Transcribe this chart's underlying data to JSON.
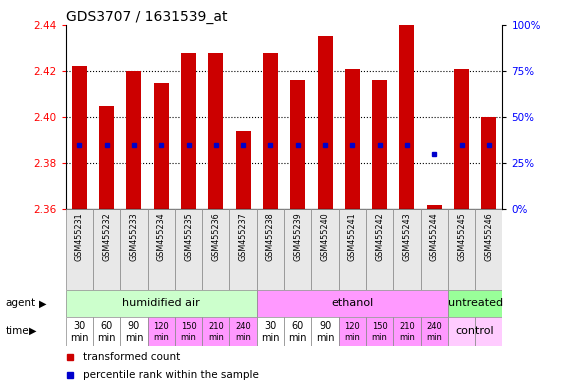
{
  "title": "GDS3707 / 1631539_at",
  "samples": [
    "GSM455231",
    "GSM455232",
    "GSM455233",
    "GSM455234",
    "GSM455235",
    "GSM455236",
    "GSM455237",
    "GSM455238",
    "GSM455239",
    "GSM455240",
    "GSM455241",
    "GSM455242",
    "GSM455243",
    "GSM455244",
    "GSM455245",
    "GSM455246"
  ],
  "bar_tops": [
    2.422,
    2.405,
    2.42,
    2.415,
    2.428,
    2.428,
    2.394,
    2.428,
    2.416,
    2.435,
    2.421,
    2.416,
    2.44,
    2.362,
    2.421,
    2.4
  ],
  "blue_dots": [
    2.388,
    2.388,
    2.388,
    2.388,
    2.388,
    2.388,
    2.388,
    2.388,
    2.388,
    2.388,
    2.388,
    2.388,
    2.388,
    2.384,
    2.388,
    2.388
  ],
  "bar_bottom": 2.36,
  "ylim": [
    2.36,
    2.44
  ],
  "yticks": [
    2.36,
    2.38,
    2.4,
    2.42,
    2.44
  ],
  "bar_color": "#cc0000",
  "blue_dot_color": "#0000cc",
  "agent_groups": [
    {
      "label": "humidified air",
      "start": 0,
      "end": 7,
      "color": "#ccffcc"
    },
    {
      "label": "ethanol",
      "start": 7,
      "end": 14,
      "color": "#ff99ff"
    },
    {
      "label": "untreated",
      "start": 14,
      "end": 16,
      "color": "#99ff99"
    }
  ],
  "time_colors": [
    "#ffffff",
    "#ffffff",
    "#ffffff",
    "#ff99ff",
    "#ff99ff",
    "#ff99ff",
    "#ff99ff",
    "#ffffff",
    "#ffffff",
    "#ffffff",
    "#ff99ff",
    "#ff99ff",
    "#ff99ff",
    "#ff99ff"
  ],
  "time_labels_top": [
    "30",
    "60",
    "90",
    "120",
    "150",
    "210",
    "240",
    "30",
    "60",
    "90",
    "120",
    "150",
    "210",
    "240"
  ],
  "control_bg": "#ffccff"
}
